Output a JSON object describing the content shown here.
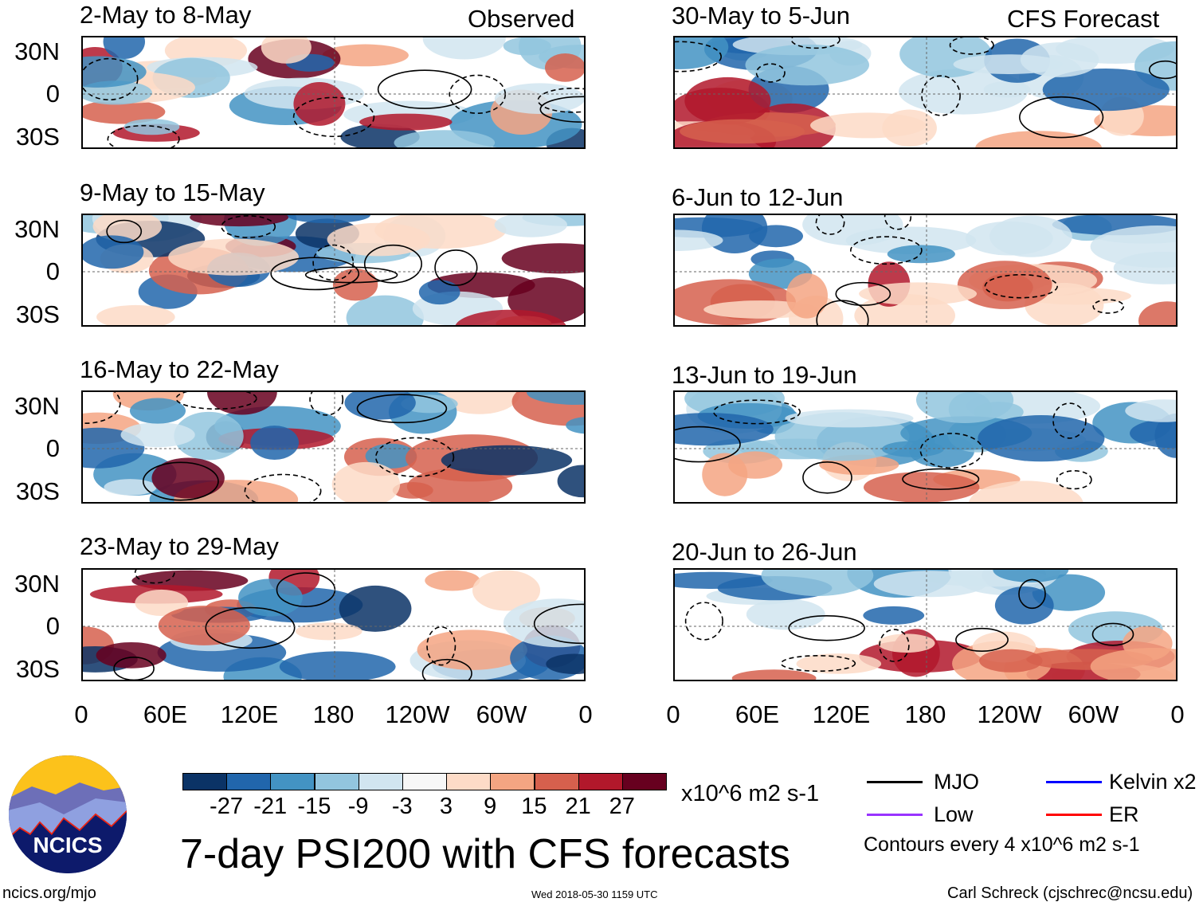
{
  "chart_data": {
    "type": "heatmap",
    "title": "7-day PSI200 with CFS forecasts",
    "observed_label": "Observed",
    "forecast_label": "CFS Forecast",
    "observed_panels": [
      "2-May to 8-May",
      "9-May to 15-May",
      "16-May to 22-May",
      "23-May to 29-May"
    ],
    "forecast_panels": [
      "30-May to 5-Jun",
      "6-Jun to 12-Jun",
      "13-Jun to 19-Jun",
      "20-Jun to 26-Jun"
    ],
    "lat_ticks": [
      "30N",
      "0",
      "30S"
    ],
    "lon_ticks": [
      "0",
      "60E",
      "120E",
      "180",
      "120W",
      "60W",
      "0"
    ],
    "colorbar": {
      "levels": [
        "-27",
        "-21",
        "-15",
        "-9",
        "-3",
        "3",
        "9",
        "15",
        "21",
        "27"
      ],
      "colors": [
        "#0b3366",
        "#2166ac",
        "#4393c3",
        "#92c5de",
        "#d1e5f0",
        "#f7f7f7",
        "#fddbc7",
        "#f4a582",
        "#d6604d",
        "#b2182b",
        "#67001f"
      ],
      "units": "x10^6 m2 s-1"
    },
    "legend": [
      {
        "label": "MJO",
        "color": "#000000"
      },
      {
        "label": "Kelvin x2",
        "color": "#0000ff"
      },
      {
        "label": "Low",
        "color": "#9933ff"
      },
      {
        "label": "ER",
        "color": "#ff0000"
      }
    ],
    "contour_note": "Contours every 4 x10^6 m2 s-1"
  },
  "footer": {
    "logo_text": "NCICS",
    "url": "ncics.org/mjo",
    "timestamp": "Wed 2018-05-30 1159 UTC",
    "author": "Carl Schreck (cjschrec@ncsu.edu)"
  }
}
